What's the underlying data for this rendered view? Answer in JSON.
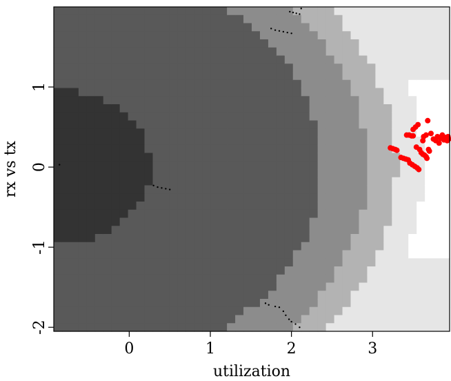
{
  "chart_data": {
    "type": "scatter",
    "title": "",
    "xlabel": "utilization",
    "ylabel": "rx vs tx",
    "xlim": [
      -0.93,
      3.95
    ],
    "ylim": [
      -2.05,
      2.0
    ],
    "grid": false,
    "legend": "none",
    "xticks": [
      {
        "value": 0,
        "label": "0"
      },
      {
        "value": 1,
        "label": "1"
      },
      {
        "value": 2,
        "label": "2"
      },
      {
        "value": 3,
        "label": "3"
      }
    ],
    "yticks": [
      {
        "value": -2,
        "label": "-2"
      },
      {
        "value": -1,
        "label": "-1"
      },
      {
        "value": 0,
        "label": "0"
      },
      {
        "value": 1,
        "label": "1"
      }
    ],
    "background": {
      "kind": "heatmap",
      "description_levels": [
        {
          "shade": "#333333"
        },
        {
          "shade": "#595959"
        },
        {
          "shade": "#8c8c8c"
        },
        {
          "shade": "#b3b3b3"
        },
        {
          "shade": "#e6e6e6"
        },
        {
          "shade": "#ffffff"
        }
      ]
    },
    "series": [
      {
        "color": "#ff0000",
        "marker": "dot",
        "points": [
          [
            3.22,
            0.24
          ],
          [
            3.25,
            0.23
          ],
          [
            3.28,
            0.22
          ],
          [
            3.3,
            0.21
          ],
          [
            3.35,
            0.12
          ],
          [
            3.38,
            0.11
          ],
          [
            3.41,
            0.1
          ],
          [
            3.44,
            0.09
          ],
          [
            3.46,
            0.05
          ],
          [
            3.49,
            0.03
          ],
          [
            3.52,
            0.01
          ],
          [
            3.55,
            -0.01
          ],
          [
            3.57,
            -0.03
          ],
          [
            3.42,
            0.4
          ],
          [
            3.45,
            0.4
          ],
          [
            3.48,
            0.39
          ],
          [
            3.5,
            0.39
          ],
          [
            3.5,
            0.47
          ],
          [
            3.53,
            0.5
          ],
          [
            3.56,
            0.53
          ],
          [
            3.54,
            0.25
          ],
          [
            3.58,
            0.22
          ],
          [
            3.6,
            0.18
          ],
          [
            3.62,
            0.16
          ],
          [
            3.64,
            0.15
          ],
          [
            3.66,
            0.13
          ],
          [
            3.67,
            0.11
          ],
          [
            3.62,
            0.33
          ],
          [
            3.63,
            0.38
          ],
          [
            3.66,
            0.4
          ],
          [
            3.68,
            0.58
          ],
          [
            3.69,
            0.22
          ],
          [
            3.7,
            0.2
          ],
          [
            3.72,
            0.42
          ],
          [
            3.75,
            0.35
          ],
          [
            3.78,
            0.33
          ],
          [
            3.8,
            0.38
          ],
          [
            3.82,
            0.3
          ],
          [
            3.84,
            0.36
          ],
          [
            3.86,
            0.4
          ],
          [
            3.88,
            0.34
          ],
          [
            3.9,
            0.37
          ],
          [
            3.92,
            0.33
          ],
          [
            3.93,
            0.38
          ],
          [
            3.94,
            0.35
          ]
        ]
      },
      {
        "color": "#000000",
        "marker": "small",
        "points": [
          [
            -0.86,
            0.03
          ],
          [
            0.3,
            -0.23
          ],
          [
            0.35,
            -0.25
          ],
          [
            0.4,
            -0.26
          ],
          [
            0.45,
            -0.27
          ],
          [
            0.5,
            -0.28
          ],
          [
            1.75,
            1.73
          ],
          [
            1.8,
            1.71
          ],
          [
            1.85,
            1.7
          ],
          [
            1.9,
            1.69
          ],
          [
            1.95,
            1.68
          ],
          [
            2.0,
            1.67
          ],
          [
            1.98,
            1.94
          ],
          [
            2.02,
            1.93
          ],
          [
            2.06,
            1.92
          ],
          [
            2.1,
            1.91
          ],
          [
            2.12,
            1.98
          ],
          [
            1.68,
            -1.7
          ],
          [
            1.72,
            -1.72
          ],
          [
            1.8,
            -1.74
          ],
          [
            1.85,
            -1.75
          ],
          [
            1.9,
            -1.8
          ],
          [
            1.93,
            -1.85
          ],
          [
            1.97,
            -1.9
          ],
          [
            2.0,
            -1.93
          ],
          [
            2.05,
            -1.96
          ],
          [
            2.1,
            -2.0
          ]
        ]
      }
    ]
  }
}
